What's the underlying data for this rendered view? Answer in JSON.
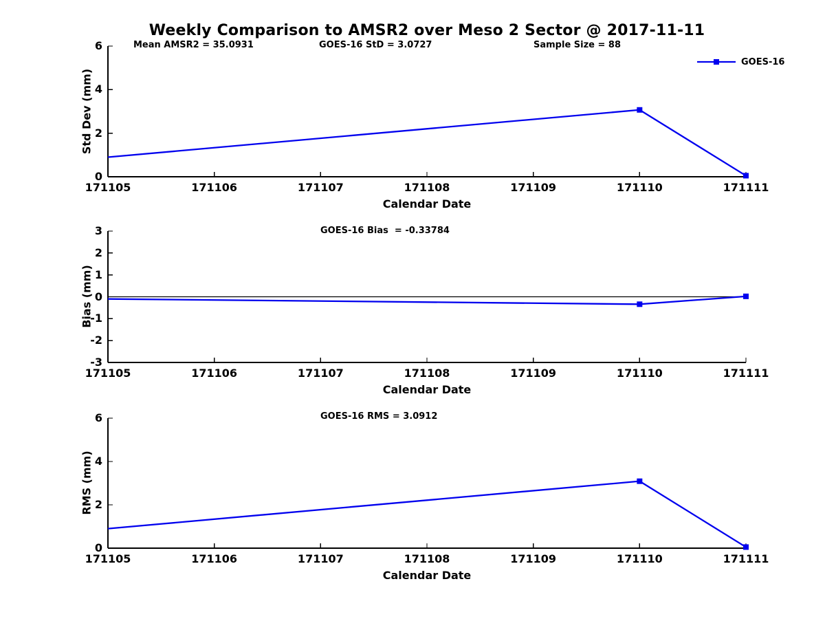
{
  "title": "Weekly Comparison to AMSR2 over Meso 2 Sector @ 2017-11-11",
  "legend": {
    "series_label": "GOES-16",
    "marker": "filled-square",
    "position": "top-right"
  },
  "stats": {
    "mean_amsr2": 35.0931,
    "goes16_std": 3.0727,
    "sample_size": 88,
    "goes16_bias": -0.33784,
    "goes16_rms": 3.0912
  },
  "colors": {
    "series_line": "#0000EE",
    "axis": "#000000",
    "zero_line": "#000000",
    "text": "#000000",
    "background": "#FFFFFF"
  },
  "chart_data": [
    {
      "type": "line",
      "panel": "std-dev",
      "ylabel": "Std Dev (mm)",
      "xlabel": "Calendar Date",
      "ylim": [
        0,
        6
      ],
      "ytick_values": [
        0,
        2,
        4,
        6
      ],
      "ytick_labels": [
        "0",
        "2",
        "4",
        "6"
      ],
      "xlim": [
        171105,
        171111
      ],
      "xtick_values": [
        171105,
        171106,
        171107,
        171108,
        171109,
        171110,
        171111
      ],
      "xtick_labels": [
        "171105",
        "171106",
        "171107",
        "171108",
        "171109",
        "171110",
        "171111"
      ],
      "annotations": [
        "Mean AMSR2 = 35.0931",
        "GOES-16 StD = 3.0727",
        "Sample Size = 88"
      ],
      "grid": false,
      "zero_line": false,
      "series": [
        {
          "name": "GOES-16",
          "x": [
            171105,
            171110,
            171111
          ],
          "y": [
            0.9,
            3.07,
            0.05
          ],
          "markers": [
            false,
            true,
            true
          ]
        }
      ]
    },
    {
      "type": "line",
      "panel": "bias",
      "ylabel": "Bias (mm)",
      "xlabel": "Calendar Date",
      "ylim": [
        -3,
        3
      ],
      "ytick_values": [
        -3,
        -2,
        -1,
        0,
        1,
        2,
        3
      ],
      "ytick_labels": [
        "-3",
        "-2",
        "-1",
        "0",
        "1",
        "2",
        "3"
      ],
      "xlim": [
        171105,
        171111
      ],
      "xtick_values": [
        171105,
        171106,
        171107,
        171108,
        171109,
        171110,
        171111
      ],
      "xtick_labels": [
        "171105",
        "171106",
        "171107",
        "171108",
        "171109",
        "171110",
        "171111"
      ],
      "annotations": [
        "GOES-16 Bias  = -0.33784"
      ],
      "grid": false,
      "zero_line": true,
      "series": [
        {
          "name": "GOES-16",
          "x": [
            171105,
            171110,
            171111
          ],
          "y": [
            -0.1,
            -0.34,
            0.02
          ],
          "markers": [
            false,
            true,
            true
          ]
        }
      ]
    },
    {
      "type": "line",
      "panel": "rms",
      "ylabel": "RMS (mm)",
      "xlabel": "Calendar Date",
      "ylim": [
        0,
        6
      ],
      "ytick_values": [
        0,
        2,
        4,
        6
      ],
      "ytick_labels": [
        "0",
        "2",
        "4",
        "6"
      ],
      "xlim": [
        171105,
        171111
      ],
      "xtick_values": [
        171105,
        171106,
        171107,
        171108,
        171109,
        171110,
        171111
      ],
      "xtick_labels": [
        "171105",
        "171106",
        "171107",
        "171108",
        "171109",
        "171110",
        "171111"
      ],
      "annotations": [
        "GOES-16 RMS = 3.0912"
      ],
      "grid": false,
      "zero_line": false,
      "series": [
        {
          "name": "GOES-16",
          "x": [
            171105,
            171110,
            171111
          ],
          "y": [
            0.9,
            3.09,
            0.05
          ],
          "markers": [
            false,
            true,
            true
          ]
        }
      ]
    }
  ]
}
